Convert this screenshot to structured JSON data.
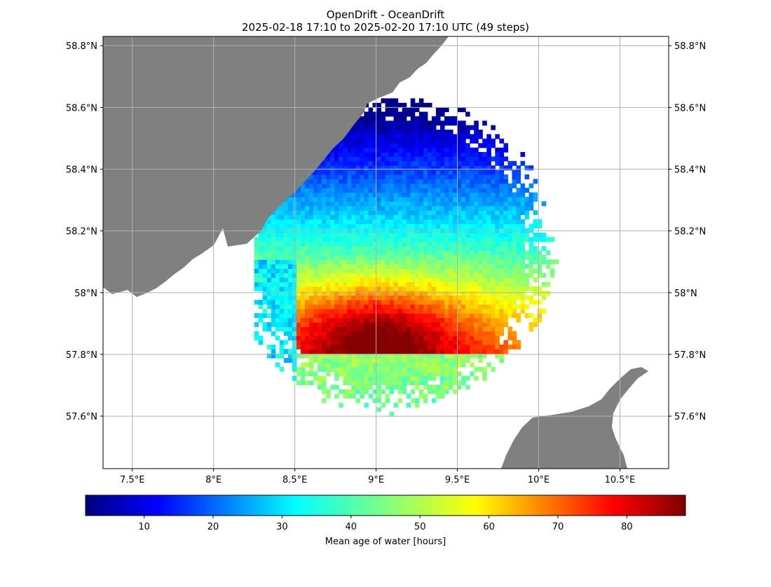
{
  "chart_data": {
    "type": "heatmap",
    "title": "OpenDrift - OceanDrift",
    "subtitle": "2025-02-18 17:10 to 2025-02-20 17:10 UTC (49 steps)",
    "map": {
      "lon_range": [
        7.32,
        10.8
      ],
      "lat_range": [
        57.43,
        58.83
      ],
      "grid": true,
      "land_color": "#808080",
      "ocean_color": "#ffffff"
    },
    "x_ticks": [
      {
        "value": 7.5,
        "label": "7.5°E"
      },
      {
        "value": 8.0,
        "label": "8°E"
      },
      {
        "value": 8.5,
        "label": "8.5°E"
      },
      {
        "value": 9.0,
        "label": "9°E"
      },
      {
        "value": 9.5,
        "label": "9.5°E"
      },
      {
        "value": 10.0,
        "label": "10°E"
      },
      {
        "value": 10.5,
        "label": "10.5°E"
      }
    ],
    "y_ticks": [
      {
        "value": 57.6,
        "label": "57.6°N"
      },
      {
        "value": 57.8,
        "label": "57.8°N"
      },
      {
        "value": 58.0,
        "label": "58°N"
      },
      {
        "value": 58.2,
        "label": "58.2°N"
      },
      {
        "value": 58.4,
        "label": "58.4°N"
      },
      {
        "value": 58.6,
        "label": "58.6°N"
      },
      {
        "value": 58.8,
        "label": "58.8°N"
      }
    ],
    "colorbar": {
      "label": "Mean age of water [hours]",
      "colormap": "jet",
      "range": [
        1.5,
        88.5
      ],
      "ticks": [
        10,
        20,
        30,
        40,
        50,
        60,
        70,
        80
      ]
    },
    "field": {
      "cell_lon": 0.026,
      "cell_lat": 0.0145,
      "extent_center": [
        9.08,
        58.12
      ],
      "age_min_hours": 2,
      "age_max_hours": 88
    }
  }
}
